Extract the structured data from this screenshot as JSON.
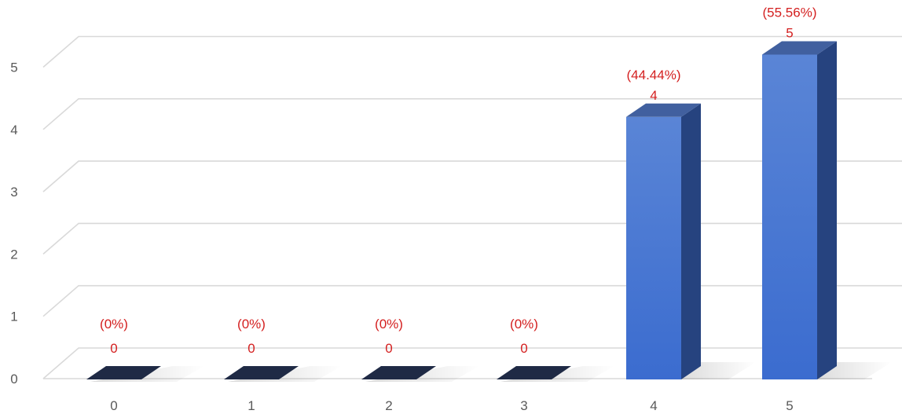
{
  "chart_data": {
    "type": "bar",
    "style": "3d-column",
    "categories": [
      "0",
      "1",
      "2",
      "3",
      "4",
      "5"
    ],
    "values": [
      0,
      0,
      0,
      0,
      4,
      5
    ],
    "percent_labels": [
      "(0%)",
      "(0%)",
      "(0%)",
      "(0%)",
      "(44.44%)",
      "(55.56%)"
    ],
    "value_labels": [
      "0",
      "0",
      "0",
      "0",
      "4",
      "5"
    ],
    "y_ticks": [
      "0",
      "1",
      "2",
      "3",
      "4",
      "5"
    ],
    "ylim": [
      0,
      5.5
    ],
    "grid": true,
    "legend": "none",
    "title": "",
    "xlabel": "",
    "ylabel": "",
    "colors": {
      "bar_front": "#3b6ccf",
      "bar_front_light": "#5a85d6",
      "bar_side": "#26437f",
      "bar_top": "#41609f",
      "zero_bar": "#1f2a45",
      "data_label": "#d42020",
      "axis_text": "#595959",
      "gridline": "#d9d9d9"
    }
  }
}
